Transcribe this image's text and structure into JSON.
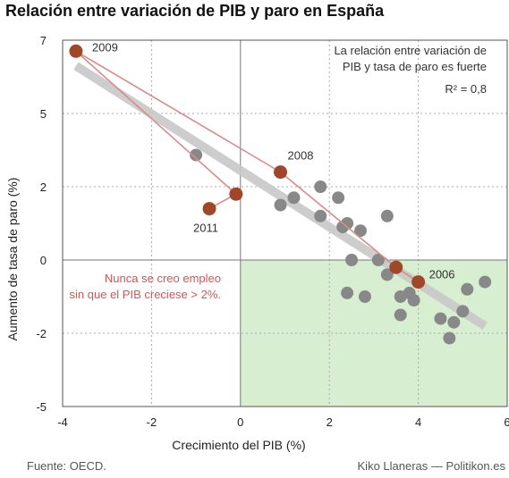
{
  "title": "Relación entre variación de PIB y paro en España",
  "source": "Fuente: OECD.",
  "credit": "Kiko Llaneras — Politikon.es",
  "chart_data": {
    "type": "scatter",
    "title": "Relación entre variación de PIB y paro en España",
    "xlabel": "Crecimiento del PIB (%)",
    "ylabel": "Aumento de tasa de paro (%)",
    "xlim": [
      -4,
      6
    ],
    "ylim": [
      -5,
      7
    ],
    "x_ticks": [
      -4,
      -2,
      0,
      2,
      4,
      6
    ],
    "y_ticks": [
      -5,
      -2,
      0,
      2,
      5,
      7
    ],
    "grid": true,
    "annotation_top": [
      "La relación entre variación de",
      "PIB y tasa de paro es fuerte"
    ],
    "r2_label": "R² = 0,8",
    "note": [
      "Nunca se creo empleo",
      "sin que el PIB creciese > 2%."
    ],
    "regression": {
      "x": [
        -3.7,
        5.5
      ],
      "y": [
        6.3,
        -1.8
      ]
    },
    "gray_points": [
      {
        "x": -1.0,
        "y": 3.3
      },
      {
        "x": -0.1,
        "y": 1.8
      },
      {
        "x": 0.9,
        "y": 1.5
      },
      {
        "x": 1.2,
        "y": 1.7
      },
      {
        "x": 1.8,
        "y": 2.0
      },
      {
        "x": 1.8,
        "y": 1.2
      },
      {
        "x": 2.2,
        "y": 1.7
      },
      {
        "x": 2.3,
        "y": 0.9
      },
      {
        "x": 2.4,
        "y": 1.0
      },
      {
        "x": 2.7,
        "y": 0.8
      },
      {
        "x": 2.5,
        "y": 0.0
      },
      {
        "x": 3.1,
        "y": 0.0
      },
      {
        "x": 3.3,
        "y": 1.2
      },
      {
        "x": 3.3,
        "y": -0.4
      },
      {
        "x": 2.4,
        "y": -0.9
      },
      {
        "x": 2.8,
        "y": -1.0
      },
      {
        "x": 3.6,
        "y": -1.0
      },
      {
        "x": 3.8,
        "y": -0.9
      },
      {
        "x": 3.9,
        "y": -1.1
      },
      {
        "x": 3.6,
        "y": -1.5
      },
      {
        "x": 4.5,
        "y": -1.6
      },
      {
        "x": 4.7,
        "y": -2.2
      },
      {
        "x": 4.8,
        "y": -1.7
      },
      {
        "x": 5.0,
        "y": -1.4
      },
      {
        "x": 5.1,
        "y": -0.8
      },
      {
        "x": 5.5,
        "y": -0.6
      }
    ],
    "highlight_path": [
      {
        "x": 4.0,
        "y": -0.6,
        "label": "2006"
      },
      {
        "x": 3.5,
        "y": -0.2,
        "label": ""
      },
      {
        "x": 0.9,
        "y": 2.6,
        "label": "2008"
      },
      {
        "x": -3.7,
        "y": 6.7,
        "label": "2009"
      },
      {
        "x": -0.1,
        "y": 1.8,
        "label": ""
      },
      {
        "x": -0.7,
        "y": 1.4,
        "label": "2011"
      }
    ],
    "colors": {
      "gray_point": "#888888",
      "highlight_point": "#a0472a",
      "path_line": "#d98a8a",
      "regression": "#c8c8c8",
      "shade": "#d8eed0",
      "note_text": "#d9534f"
    }
  }
}
